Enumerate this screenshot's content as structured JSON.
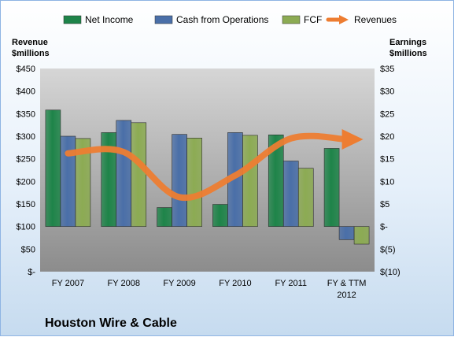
{
  "chart_data": {
    "type": "bar",
    "title": "Houston Wire & Cable",
    "categories": [
      [
        "FY 2007"
      ],
      [
        "FY 2008"
      ],
      [
        "FY 2009"
      ],
      [
        "FY 2010"
      ],
      [
        "FY 2011"
      ],
      [
        "FY & TTM",
        "2012"
      ]
    ],
    "series": [
      {
        "name": "Net Income",
        "type": "bar",
        "axis": "right",
        "color": "#1e8449",
        "values": [
          25.8,
          20.8,
          4.2,
          4.9,
          20.3,
          17.3
        ]
      },
      {
        "name": "Cash from Operations",
        "type": "bar",
        "axis": "right",
        "color": "#4a6fa8",
        "values": [
          20.0,
          23.5,
          20.4,
          20.8,
          14.5,
          -2.9
        ]
      },
      {
        "name": "FCF",
        "type": "bar",
        "axis": "right",
        "color": "#8cab53",
        "values": [
          19.5,
          23.0,
          19.6,
          20.2,
          12.9,
          -3.9
        ]
      },
      {
        "name": "Revenues",
        "type": "line",
        "axis": "left",
        "color": "#ed7d31",
        "values": [
          262,
          265,
          165,
          213,
          295,
          293
        ]
      }
    ],
    "ylabel_left": [
      "Revenue",
      "$millions"
    ],
    "ylabel_right": [
      "Earnings",
      "$millions"
    ],
    "ylim_left": [
      0,
      450
    ],
    "ylim_right": [
      -10,
      35
    ],
    "yticks_left": [
      "$450",
      "$400",
      "$350",
      "$300",
      "$250",
      "$200",
      "$150",
      "$100",
      "$50",
      "$-"
    ],
    "yticks_right": [
      "$35",
      "$30",
      "$25",
      "$20",
      "$15",
      "$10",
      "$5",
      "$-",
      "$(5)",
      "$(10)"
    ],
    "legend_position": "top",
    "grid": false
  }
}
